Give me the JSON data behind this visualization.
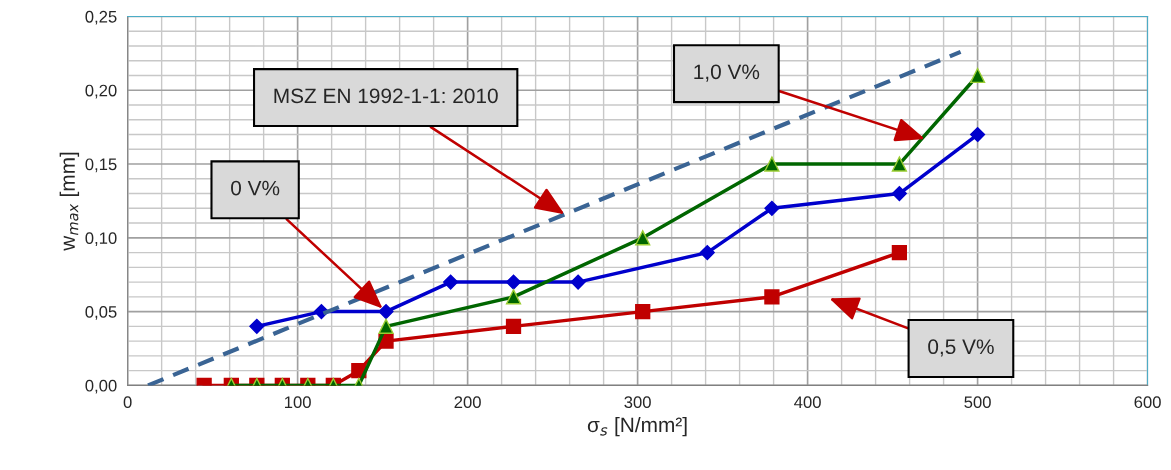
{
  "chart_data": {
    "type": "line",
    "xlabel": "σ$_{s}$ [N/mm²]",
    "ylabel": "w$_{max}$ [mm]",
    "series": [
      {
        "color": "#0000cc",
        "marker": "diamond",
        "x": [
          76,
          114,
          152,
          190,
          227,
          265,
          341,
          379,
          454,
          500
        ],
        "values": [
          0.04,
          0.05,
          0.05,
          0.07,
          0.07,
          0.07,
          0.09,
          0.12,
          0.13,
          0.17
        ]
      },
      {
        "color": "#c00000",
        "marker": "square",
        "x": [
          45,
          61,
          76,
          91,
          106,
          121,
          136,
          152,
          227,
          303,
          379,
          454
        ],
        "values": [
          0,
          0,
          0,
          0,
          0,
          0,
          0.01,
          0.03,
          0.04,
          0.05,
          0.06,
          0.09
        ]
      },
      {
        "color": "#006600",
        "marker": "triangle",
        "x": [
          61,
          76,
          91,
          106,
          121,
          136,
          152,
          227,
          303,
          379,
          454,
          500
        ],
        "values": [
          0,
          0,
          0,
          0,
          0,
          0,
          0.04,
          0.06,
          0.1,
          0.15,
          0.15,
          0.21
        ]
      },
      {
        "color": "#3a6494",
        "marker": "none",
        "line_style": "dashed",
        "x": [
          12,
          490
        ],
        "values": [
          0,
          0.226
        ]
      }
    ],
    "annotations": [
      {
        "text": "MSZ EN 1992-1-1: 2010",
        "x": 257,
        "y": 0.116
      },
      {
        "text": "0 V%",
        "x": 150,
        "y": 0.052
      },
      {
        "text": "1,0 V%",
        "x": 469,
        "y": 0.167
      },
      "0,5 V%"
    ],
    "xlim": [
      0,
      600
    ],
    "xticks": [
      0,
      100,
      200,
      300,
      400,
      500,
      600
    ],
    "ylim": [
      0,
      0.25
    ],
    "yticks": [
      {
        "value": 0,
        "label": "0,00"
      },
      {
        "value": 0.05,
        "label": "0,05"
      },
      {
        "value": 0.1,
        "label": "0,10"
      },
      {
        "value": 0.15,
        "label": "0,15"
      },
      {
        "value": 0.2,
        "label": "0,20"
      },
      {
        "value": 0.25,
        "label": "0,25"
      }
    ],
    "grid": true,
    "legend": false
  }
}
